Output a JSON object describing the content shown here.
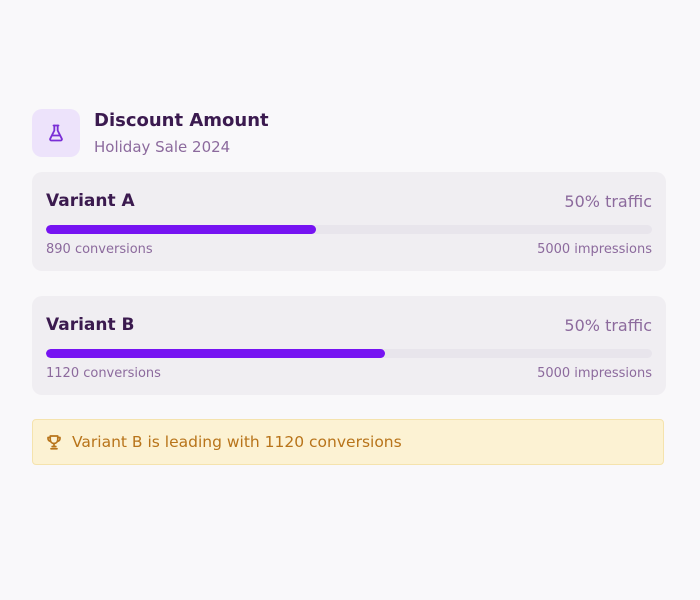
{
  "experiment": {
    "title": "Discount Amount",
    "subtitle": "Holiday Sale 2024",
    "icon": "flask-icon"
  },
  "variants": [
    {
      "name": "Variant A",
      "traffic": "50% traffic",
      "conversions": "890 conversions",
      "impressions": "5000 impressions",
      "conversion_fraction": 0.445
    },
    {
      "name": "Variant B",
      "traffic": "50% traffic",
      "conversions": "1120 conversions",
      "impressions": "5000 impressions",
      "conversion_fraction": 0.56
    }
  ],
  "banner": {
    "text": "Variant B is leading with 1120 conversions",
    "icon": "trophy-icon"
  },
  "colors": {
    "accent": "#7613f2",
    "banner_text": "#b8741a"
  }
}
